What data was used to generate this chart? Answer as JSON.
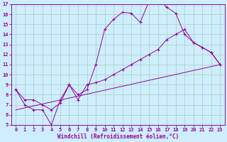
{
  "xlabel": "Windchill (Refroidissement éolien,°C)",
  "bg_color": "#cceeff",
  "line_color": "#990099",
  "grid_color": "#aaccbb",
  "xlim": [
    -0.5,
    23.5
  ],
  "ylim": [
    5,
    17
  ],
  "xticks": [
    0,
    1,
    2,
    3,
    4,
    5,
    6,
    7,
    8,
    9,
    10,
    11,
    12,
    13,
    14,
    15,
    16,
    17,
    18,
    19,
    20,
    21,
    22,
    23
  ],
  "yticks": [
    5,
    6,
    7,
    8,
    9,
    10,
    11,
    12,
    13,
    14,
    15,
    16,
    17
  ],
  "line1_x": [
    0,
    1,
    2,
    3,
    4,
    5,
    6,
    7,
    8,
    9,
    10,
    11,
    12,
    13,
    14,
    15,
    16,
    17,
    18,
    19,
    20,
    21,
    22,
    23
  ],
  "line1_y": [
    8.5,
    7.0,
    6.5,
    6.5,
    5.0,
    7.5,
    9.0,
    8.0,
    8.5,
    11.0,
    14.5,
    15.5,
    16.2,
    16.1,
    15.2,
    17.3,
    17.5,
    16.7,
    16.1,
    14.0,
    13.2,
    12.7,
    12.2,
    11.0
  ],
  "line2_x": [
    0,
    1,
    2,
    3,
    4,
    5,
    6,
    7,
    8,
    9,
    10,
    11,
    12,
    13,
    14,
    15,
    16,
    17,
    18,
    19,
    20,
    21,
    22,
    23
  ],
  "line2_y": [
    8.5,
    7.5,
    7.5,
    7.0,
    6.5,
    7.2,
    9.0,
    7.5,
    9.0,
    9.2,
    9.5,
    10.0,
    10.5,
    11.0,
    11.5,
    12.0,
    12.5,
    13.5,
    14.0,
    14.5,
    13.2,
    12.7,
    12.2,
    11.0
  ],
  "line3_x": [
    0,
    23
  ],
  "line3_y": [
    6.5,
    11.0
  ]
}
